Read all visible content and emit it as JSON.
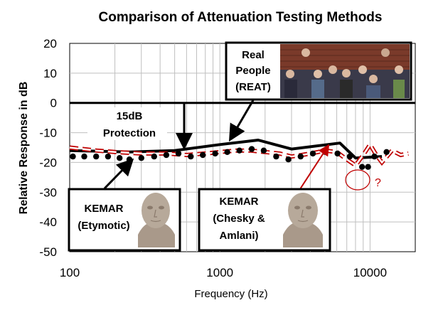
{
  "chart_data": {
    "type": "line",
    "title": "Comparison of Attenuation Testing Methods",
    "xlabel": "Frequency (Hz)",
    "ylabel": "Relative Response in dB",
    "xscale": "log",
    "xlim": [
      100,
      20000
    ],
    "ylim": [
      -50,
      20
    ],
    "yticks": [
      "20",
      "10",
      "0",
      "-10",
      "-20",
      "-30",
      "-40",
      "-50"
    ],
    "xticks": [
      "100",
      "1000",
      "10000"
    ],
    "grid": true,
    "reference_line_y": 0,
    "series": [
      {
        "style": "thick-black-line",
        "color": "#000000",
        "x": [
          100,
          250,
          500,
          1000,
          1800,
          3000,
          6300,
          8000,
          12000
        ],
        "y": [
          -16,
          -16.5,
          -16,
          -14,
          -12.5,
          -15.5,
          -13.5,
          -18.5,
          -18
        ]
      },
      {
        "style": "red-dashed-line",
        "color": "#c00000",
        "x": [
          100,
          150,
          200,
          300,
          450,
          600,
          800,
          1000,
          1300,
          1600,
          2000,
          2500,
          3000,
          3500,
          4000,
          4500,
          5000,
          6000,
          7000,
          8000,
          9000,
          10000,
          11000,
          12000,
          14000,
          16000,
          18000
        ],
        "y": [
          -15,
          -16,
          -16.5,
          -17,
          -17,
          -17.5,
          -17,
          -16.5,
          -16,
          -16,
          -16.5,
          -17,
          -18,
          -17.5,
          -17,
          -16.5,
          -16,
          -16.5,
          -19,
          -21,
          -17.5,
          -14,
          -17.5,
          -20,
          -16,
          -17.5,
          -17
        ]
      },
      {
        "style": "black-dots",
        "color": "#000000",
        "x": [
          105,
          125,
          150,
          180,
          215,
          250,
          300,
          365,
          440,
          530,
          640,
          770,
          930,
          1120,
          1350,
          1630,
          1960,
          2370,
          2860,
          3450,
          4160,
          5030,
          6070,
          7330,
          8850,
          9700,
          10680,
          12880
        ],
        "y": [
          -18,
          -18,
          -18,
          -18,
          -18.5,
          -19,
          -18.5,
          -18,
          -17.5,
          -17,
          -18,
          -17.5,
          -17,
          -16.5,
          -16,
          -15.5,
          -16,
          -18,
          -19,
          -18,
          -17,
          -16.5,
          -17,
          -18,
          -21.5,
          -21.5,
          -18,
          -16.5
        ]
      }
    ],
    "annotations": {
      "real_people_line1": "Real",
      "real_people_line2": "People",
      "real_people_line3": "(REAT)",
      "protection_line1": "15dB",
      "protection_line2": "Protection",
      "kemar1_line1": "KEMAR",
      "kemar1_line2": "(Etymotic)",
      "kemar2_line1": "KEMAR",
      "kemar2_line2": "(Chesky &",
      "kemar2_line3": "Amlani)",
      "question_mark": "?"
    },
    "colors": {
      "dashed_series": "#c00000",
      "grid": "#bfbfbf",
      "face": "#b7a99a"
    }
  }
}
